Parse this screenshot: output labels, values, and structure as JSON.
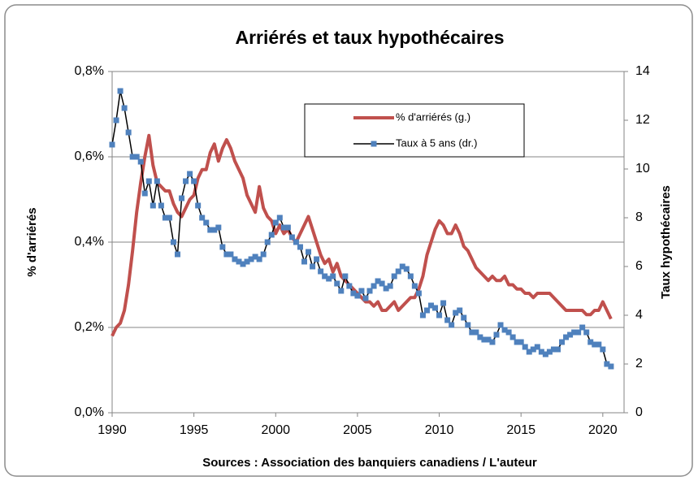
{
  "chart_data": {
    "type": "line",
    "title": "Arriérés et taux hypothécaires",
    "x_label": "Sources : Association des banquiers canadiens / L'auteur",
    "y_label": "% d'arriérés",
    "y2_label": "Taux hypothécaires",
    "x": [
      1990,
      1990.25,
      1990.5,
      1990.75,
      1991,
      1991.25,
      1991.5,
      1991.75,
      1992,
      1992.25,
      1992.5,
      1992.75,
      1993,
      1993.25,
      1993.5,
      1993.75,
      1994,
      1994.25,
      1994.5,
      1994.75,
      1995,
      1995.25,
      1995.5,
      1995.75,
      1996,
      1996.25,
      1996.5,
      1996.75,
      1997,
      1997.25,
      1997.5,
      1997.75,
      1998,
      1998.25,
      1998.5,
      1998.75,
      1999,
      1999.25,
      1999.5,
      1999.75,
      2000,
      2000.25,
      2000.5,
      2000.75,
      2001,
      2001.25,
      2001.5,
      2001.75,
      2002,
      2002.25,
      2002.5,
      2002.75,
      2003,
      2003.25,
      2003.5,
      2003.75,
      2004,
      2004.25,
      2004.5,
      2004.75,
      2005,
      2005.25,
      2005.5,
      2005.75,
      2006,
      2006.25,
      2006.5,
      2006.75,
      2007,
      2007.25,
      2007.5,
      2007.75,
      2008,
      2008.25,
      2008.5,
      2008.75,
      2009,
      2009.25,
      2009.5,
      2009.75,
      2010,
      2010.25,
      2010.5,
      2010.75,
      2011,
      2011.25,
      2011.5,
      2011.75,
      2012,
      2012.25,
      2012.5,
      2012.75,
      2013,
      2013.25,
      2013.5,
      2013.75,
      2014,
      2014.25,
      2014.5,
      2014.75,
      2015,
      2015.25,
      2015.5,
      2015.75,
      2016,
      2016.25,
      2016.5,
      2016.75,
      2017,
      2017.25,
      2017.5,
      2017.75,
      2018,
      2018.25,
      2018.5,
      2018.75,
      2019,
      2019.25,
      2019.5,
      2019.75,
      2020,
      2020.25,
      2020.5
    ],
    "series": [
      {
        "name": "% d'arriérés (g.)",
        "color": "#c0504d",
        "axis": "y",
        "values": [
          0.18,
          0.2,
          0.21,
          0.24,
          0.3,
          0.38,
          0.47,
          0.54,
          0.6,
          0.65,
          0.58,
          0.54,
          0.53,
          0.52,
          0.52,
          0.49,
          0.47,
          0.46,
          0.48,
          0.5,
          0.51,
          0.55,
          0.57,
          0.57,
          0.61,
          0.63,
          0.59,
          0.62,
          0.64,
          0.62,
          0.59,
          0.57,
          0.55,
          0.51,
          0.49,
          0.47,
          0.53,
          0.48,
          0.46,
          0.45,
          0.42,
          0.44,
          0.42,
          0.43,
          0.41,
          0.4,
          0.42,
          0.44,
          0.46,
          0.43,
          0.4,
          0.37,
          0.35,
          0.36,
          0.33,
          0.35,
          0.32,
          0.31,
          0.3,
          0.29,
          0.28,
          0.27,
          0.26,
          0.26,
          0.25,
          0.26,
          0.24,
          0.24,
          0.25,
          0.26,
          0.24,
          0.25,
          0.26,
          0.27,
          0.27,
          0.29,
          0.32,
          0.37,
          0.4,
          0.43,
          0.45,
          0.44,
          0.42,
          0.42,
          0.44,
          0.42,
          0.39,
          0.38,
          0.36,
          0.34,
          0.33,
          0.32,
          0.31,
          0.32,
          0.31,
          0.31,
          0.32,
          0.3,
          0.3,
          0.29,
          0.29,
          0.28,
          0.28,
          0.27,
          0.28,
          0.28,
          0.28,
          0.28,
          0.27,
          0.26,
          0.25,
          0.24,
          0.24,
          0.24,
          0.24,
          0.24,
          0.23,
          0.23,
          0.24,
          0.24,
          0.26,
          0.24,
          0.22
        ]
      },
      {
        "name": "Taux à 5 ans (dr.)",
        "color": "#4f81bd",
        "line_color": "#000000",
        "axis": "y2",
        "values": [
          11,
          12,
          13.2,
          12.5,
          11.5,
          10.5,
          10.5,
          10.3,
          9.0,
          9.5,
          8.5,
          9.5,
          8.5,
          8.0,
          8.0,
          7.0,
          6.5,
          8.8,
          9.5,
          9.8,
          9.5,
          8.5,
          8.0,
          7.8,
          7.5,
          7.5,
          7.6,
          6.8,
          6.5,
          6.5,
          6.3,
          6.2,
          6.1,
          6.2,
          6.3,
          6.4,
          6.3,
          6.5,
          7.0,
          7.3,
          7.8,
          8.0,
          7.6,
          7.6,
          7.2,
          7.0,
          6.8,
          6.2,
          6.6,
          6.0,
          6.3,
          5.8,
          5.6,
          5.5,
          5.6,
          5.3,
          5.0,
          5.6,
          5.2,
          4.9,
          4.8,
          5.0,
          4.7,
          5.0,
          5.2,
          5.4,
          5.3,
          5.1,
          5.2,
          5.6,
          5.8,
          6.0,
          5.9,
          5.6,
          5.2,
          4.9,
          4.0,
          4.2,
          4.4,
          4.3,
          4.0,
          4.5,
          3.8,
          3.6,
          4.1,
          4.2,
          3.9,
          3.6,
          3.3,
          3.3,
          3.1,
          3.0,
          3.0,
          2.9,
          3.2,
          3.6,
          3.4,
          3.3,
          3.1,
          2.9,
          2.9,
          2.7,
          2.5,
          2.6,
          2.7,
          2.5,
          2.4,
          2.5,
          2.6,
          2.6,
          2.9,
          3.1,
          3.2,
          3.3,
          3.3,
          3.5,
          3.3,
          2.9,
          2.8,
          2.8,
          2.6,
          2.0,
          1.9
        ]
      }
    ],
    "xlim": [
      1990,
      2021.3
    ],
    "xticks": [
      1990,
      1995,
      2000,
      2005,
      2010,
      2015,
      2020
    ],
    "ylim": [
      0,
      0.8
    ],
    "yticks": [
      {
        "value": 0,
        "label": "0,0%"
      },
      {
        "value": 0.2,
        "label": "0,2%"
      },
      {
        "value": 0.4,
        "label": "0,4%"
      },
      {
        "value": 0.6,
        "label": "0,6%"
      },
      {
        "value": 0.8,
        "label": "0,8%"
      }
    ],
    "y2lim": [
      0,
      14
    ],
    "y2ticks": [
      0,
      2,
      4,
      6,
      8,
      10,
      12,
      14
    ],
    "grid": true,
    "legend": "upper right"
  }
}
